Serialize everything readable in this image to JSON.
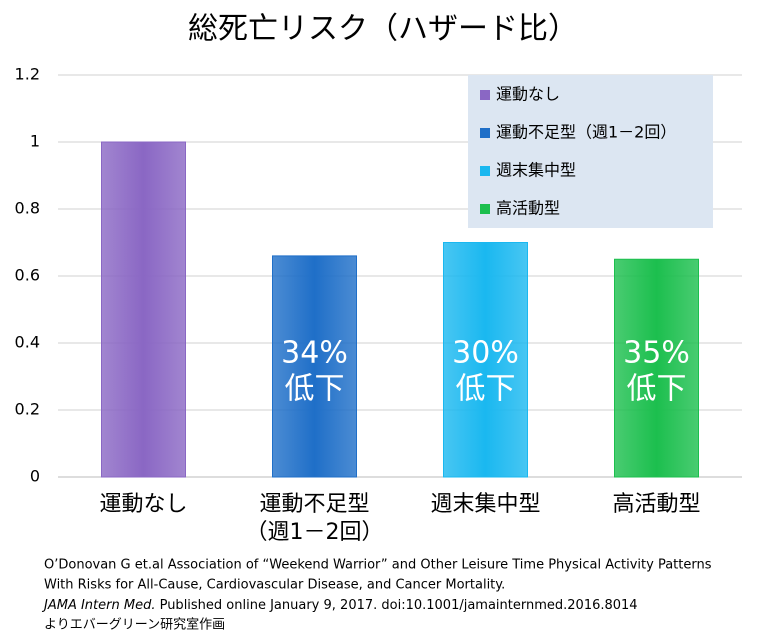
{
  "chart_data": {
    "type": "bar",
    "title": "総死亡リスク（ハザード比）",
    "categories": [
      "運動なし",
      "運動不足型（週1－2回）",
      "週末集中型",
      "高活動型"
    ],
    "values": [
      1,
      0.66,
      0.7,
      0.65
    ],
    "colors": [
      "#8a67c4",
      "#1f6fc8",
      "#1ab8f0",
      "#1cbf4e"
    ],
    "bar_labels": [
      null,
      [
        "34%",
        "低下"
      ],
      [
        "30%",
        "低下"
      ],
      [
        "35%",
        "低下"
      ]
    ],
    "ylim": [
      0,
      1.2
    ],
    "yticks": [
      0,
      0.2,
      0.4,
      0.6,
      0.8,
      1,
      1.2
    ],
    "grid": true,
    "legend": "top-right",
    "source": [
      "O’Donovan G et.al Association of “Weekend Warrior” and Other Leisure Time Physical Activity Patterns",
      "With Risks for All-Cause, Cardiovascular Disease, and Cancer Mortality.",
      {
        "journal": "JAMA Intern Med.",
        "text": " Published online January 9, 2017. doi:10.1001/jamainternmed.2016.8014"
      },
      "よりエバーグリーン研究室作画"
    ]
  }
}
